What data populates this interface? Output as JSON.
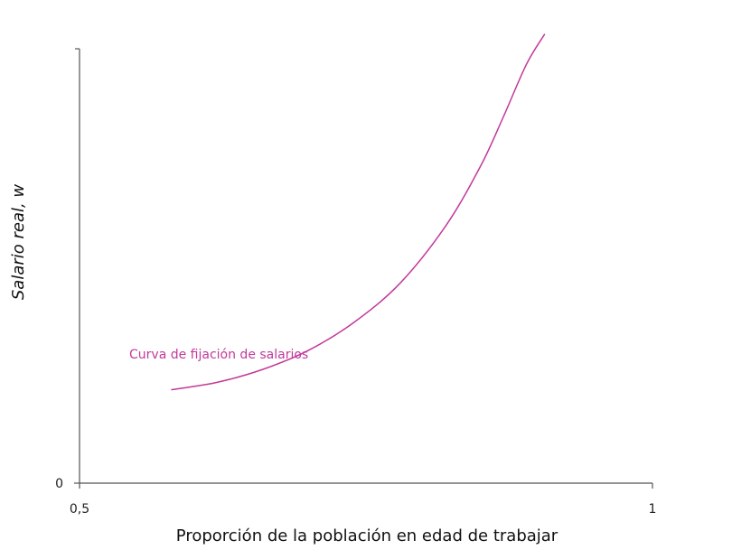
{
  "chart_data": {
    "type": "line",
    "title": "",
    "xlabel": "Proporción de la población en edad de trabajar",
    "ylabel": "Salario real, w",
    "xlim": [
      0.5,
      1
    ],
    "ylim": [
      0,
      100
    ],
    "x_ticks": [
      "0,5",
      "1"
    ],
    "y_ticks": [
      "0"
    ],
    "grid": false,
    "colors": {
      "curve": "#c2399a",
      "axis": "#555555"
    },
    "series": [
      {
        "name": "Curva de fijación de salarios",
        "x": [
          0.58,
          0.62,
          0.66,
          0.7,
          0.74,
          0.78,
          0.82,
          0.85,
          0.87,
          0.89,
          0.906
        ],
        "y": [
          21.5,
          23.2,
          26.2,
          30.6,
          37.1,
          46.1,
          59.4,
          73.0,
          84.4,
          96.4,
          103.4
        ]
      }
    ]
  }
}
